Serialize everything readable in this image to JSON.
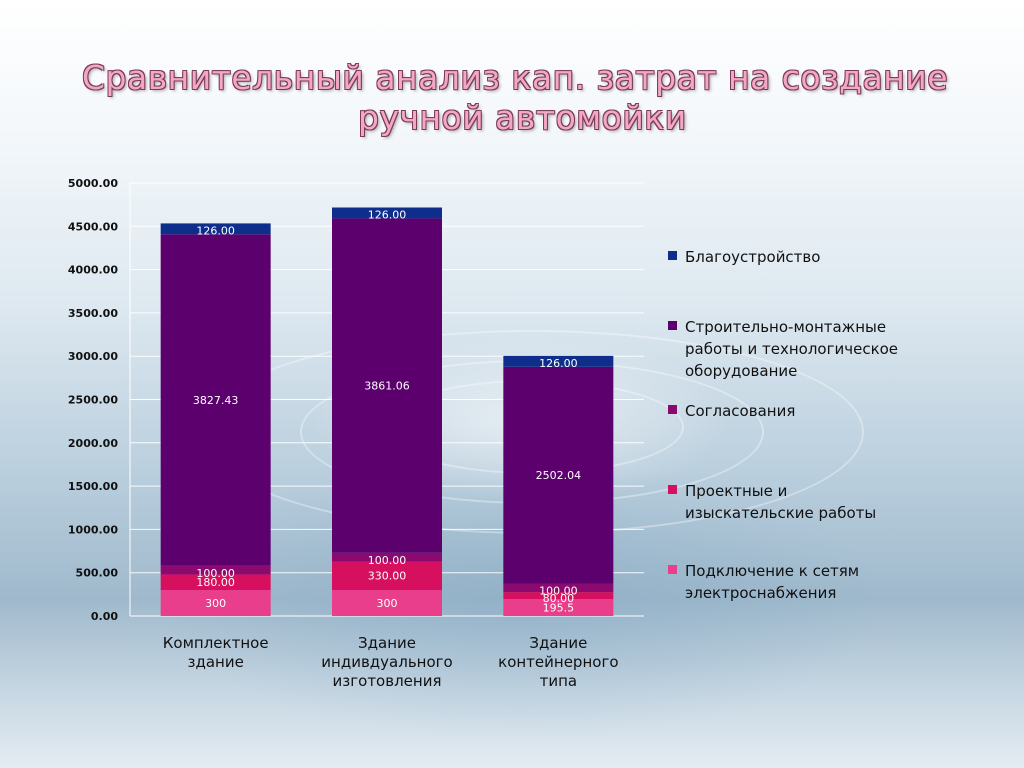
{
  "title_line1": "Сравнительный анализ кап. затрат на создание",
  "title_line2": "ручной автомойки",
  "chart_data": {
    "type": "bar",
    "stacked": true,
    "categories": [
      "Комплектное здание",
      "Здание индивдуального изготовления",
      "Здание контейнерного типа"
    ],
    "category_lines": [
      [
        "Комплектное",
        "здание"
      ],
      [
        "Здание",
        "индивдуального",
        "изготовления"
      ],
      [
        "Здание",
        "контейнерного",
        "типа"
      ]
    ],
    "series": [
      {
        "name": "Подключение к сетям электроснабжения",
        "name_lines": [
          "Подключение к сетям",
          "электроснабжения"
        ],
        "color": "#e83e8c",
        "values": [
          300,
          300,
          195.5
        ],
        "labels": [
          "300",
          "300",
          "195.5"
        ]
      },
      {
        "name": "Проектные и изыскательские работы",
        "name_lines": [
          "Проектные и",
          "изыскательские работы"
        ],
        "color": "#d6105e",
        "values": [
          180,
          330,
          80
        ],
        "labels": [
          "180.00",
          "330.00",
          "80.00"
        ]
      },
      {
        "name": "Согласования",
        "name_lines": [
          "Согласования"
        ],
        "color": "#8b0a70",
        "values": [
          100,
          100,
          100
        ],
        "labels": [
          "100.00",
          "100.00",
          "100.00"
        ]
      },
      {
        "name": "Строительно-монтажные работы и технологическое оборудование",
        "name_lines": [
          "Строительно-монтажные",
          "работы и технологическое",
          "оборудование"
        ],
        "color": "#5c006e",
        "values": [
          3827.43,
          3861.06,
          2502.04
        ],
        "labels": [
          "3827.43",
          "3861.06",
          "2502.04"
        ]
      },
      {
        "name": "Благоустройство",
        "name_lines": [
          "Благоустройство"
        ],
        "color": "#0f2e8c",
        "values": [
          126,
          126,
          126
        ],
        "labels": [
          "126.00",
          "126.00",
          "126.00"
        ]
      }
    ],
    "legend_order": [
      4,
      3,
      2,
      1,
      0
    ],
    "ylim": [
      0,
      5000
    ],
    "yticks": [
      "0.00",
      "500.00",
      "1000.00",
      "1500.00",
      "2000.00",
      "2500.00",
      "3000.00",
      "3500.00",
      "4000.00",
      "4500.00",
      "5000.00"
    ],
    "grid": true,
    "legend_position": "right"
  }
}
